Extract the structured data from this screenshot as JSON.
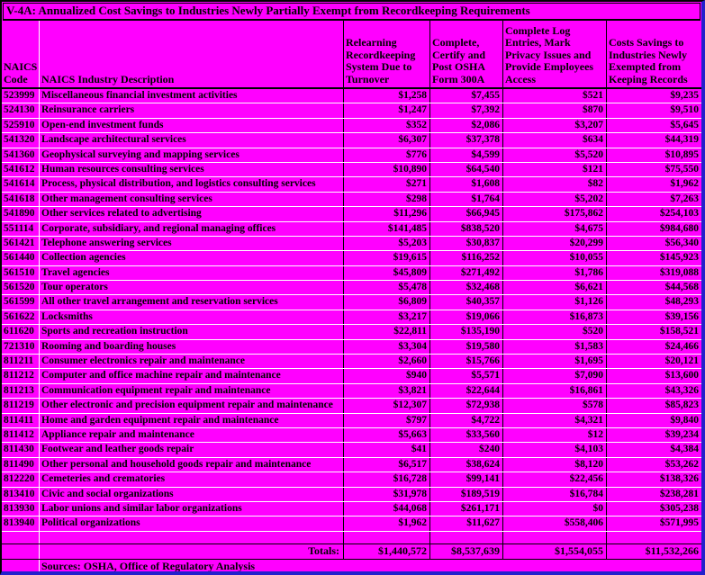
{
  "title": "V-4A: Annualized Cost Savings to Industries Newly Partially Exempt from Recordkeeping Requirements",
  "columns": [
    "NAICS Code",
    "NAICS Industry Description",
    "Relearning Recordkeeping System Due to Turnover",
    "Complete, Certify and Post OSHA Form 300A",
    "Complete Log Entries, Mark Privacy Issues and Provide Employees Access",
    "Costs Savings to Industries Newly Exempted from Keeping Records"
  ],
  "colors": {
    "background": "#FF00FF",
    "text": "#000000",
    "row_separator": "#FFFFFF",
    "frame_blue": "#2222CC"
  },
  "chart_data": {
    "type": "table",
    "title": "V-4A: Annualized Cost Savings to Industries Newly Partially Exempt from Recordkeeping Requirements",
    "rows": [
      {
        "code": "523999",
        "description": "Miscellaneous financial investment activities",
        "relearning": "$1,258",
        "certify": "$7,455",
        "log_entries": "$521",
        "total": "$9,235"
      },
      {
        "code": "524130",
        "description": "Reinsurance carriers",
        "relearning": "$1,247",
        "certify": "$7,392",
        "log_entries": "$870",
        "total": "$9,510"
      },
      {
        "code": "525910",
        "description": "Open-end investment funds",
        "relearning": "$352",
        "certify": "$2,086",
        "log_entries": "$3,207",
        "total": "$5,645"
      },
      {
        "code": "541320",
        "description": "Landscape architectural services",
        "relearning": "$6,307",
        "certify": "$37,378",
        "log_entries": "$634",
        "total": "$44,319"
      },
      {
        "code": "541360",
        "description": "Geophysical surveying and mapping services",
        "relearning": "$776",
        "certify": "$4,599",
        "log_entries": "$5,520",
        "total": "$10,895"
      },
      {
        "code": "541612",
        "description": "Human resources consulting services",
        "relearning": "$10,890",
        "certify": "$64,540",
        "log_entries": "$121",
        "total": "$75,550"
      },
      {
        "code": "541614",
        "description": "Process, physical distribution, and logistics consulting services",
        "relearning": "$271",
        "certify": "$1,608",
        "log_entries": "$82",
        "total": "$1,962"
      },
      {
        "code": "541618",
        "description": "Other management consulting services",
        "relearning": "$298",
        "certify": "$1,764",
        "log_entries": "$5,202",
        "total": "$7,263"
      },
      {
        "code": "541890",
        "description": "Other services related to advertising",
        "relearning": "$11,296",
        "certify": "$66,945",
        "log_entries": "$175,862",
        "total": "$254,103"
      },
      {
        "code": "551114",
        "description": "Corporate, subsidiary, and regional managing offices",
        "relearning": "$141,485",
        "certify": "$838,520",
        "log_entries": "$4,675",
        "total": "$984,680"
      },
      {
        "code": "561421",
        "description": "Telephone answering services",
        "relearning": "$5,203",
        "certify": "$30,837",
        "log_entries": "$20,299",
        "total": "$56,340"
      },
      {
        "code": "561440",
        "description": "Collection agencies",
        "relearning": "$19,615",
        "certify": "$116,252",
        "log_entries": "$10,055",
        "total": "$145,923"
      },
      {
        "code": "561510",
        "description": "Travel agencies",
        "relearning": "$45,809",
        "certify": "$271,492",
        "log_entries": "$1,786",
        "total": "$319,088"
      },
      {
        "code": "561520",
        "description": "Tour operators",
        "relearning": "$5,478",
        "certify": "$32,468",
        "log_entries": "$6,621",
        "total": "$44,568"
      },
      {
        "code": "561599",
        "description": "All other travel arrangement and reservation services",
        "relearning": "$6,809",
        "certify": "$40,357",
        "log_entries": "$1,126",
        "total": "$48,293"
      },
      {
        "code": "561622",
        "description": "Locksmiths",
        "relearning": "$3,217",
        "certify": "$19,066",
        "log_entries": "$16,873",
        "total": "$39,156"
      },
      {
        "code": "611620",
        "description": "Sports and recreation instruction",
        "relearning": "$22,811",
        "certify": "$135,190",
        "log_entries": "$520",
        "total": "$158,521"
      },
      {
        "code": "721310",
        "description": "Rooming and boarding houses",
        "relearning": "$3,304",
        "certify": "$19,580",
        "log_entries": "$1,583",
        "total": "$24,466"
      },
      {
        "code": "811211",
        "description": "Consumer electronics repair and maintenance",
        "relearning": "$2,660",
        "certify": "$15,766",
        "log_entries": "$1,695",
        "total": "$20,121"
      },
      {
        "code": "811212",
        "description": "Computer and office machine repair and maintenance",
        "relearning": "$940",
        "certify": "$5,571",
        "log_entries": "$7,090",
        "total": "$13,600"
      },
      {
        "code": "811213",
        "description": "Communication equipment repair and maintenance",
        "relearning": "$3,821",
        "certify": "$22,644",
        "log_entries": "$16,861",
        "total": "$43,326"
      },
      {
        "code": "811219",
        "description": "Other electronic and precision equipment repair and maintenance",
        "relearning": "$12,307",
        "certify": "$72,938",
        "log_entries": "$578",
        "total": "$85,823"
      },
      {
        "code": "811411",
        "description": "Home and garden equipment repair and maintenance",
        "relearning": "$797",
        "certify": "$4,722",
        "log_entries": "$4,321",
        "total": "$9,840"
      },
      {
        "code": "811412",
        "description": "Appliance repair and maintenance",
        "relearning": "$5,663",
        "certify": "$33,560",
        "log_entries": "$12",
        "total": "$39,234"
      },
      {
        "code": "811430",
        "description": "Footwear and leather goods repair",
        "relearning": "$41",
        "certify": "$240",
        "log_entries": "$4,103",
        "total": "$4,384"
      },
      {
        "code": "811490",
        "description": "Other personal and household goods repair and maintenance",
        "relearning": "$6,517",
        "certify": "$38,624",
        "log_entries": "$8,120",
        "total": "$53,262"
      },
      {
        "code": "812220",
        "description": "Cemeteries and crematories",
        "relearning": "$16,728",
        "certify": "$99,141",
        "log_entries": "$22,456",
        "total": "$138,326"
      },
      {
        "code": "813410",
        "description": "Civic and social organizations",
        "relearning": "$31,978",
        "certify": "$189,519",
        "log_entries": "$16,784",
        "total": "$238,281"
      },
      {
        "code": "813930",
        "description": "Labor unions and similar labor organizations",
        "relearning": "$44,068",
        "certify": "$261,171",
        "log_entries": "$0",
        "total": "$305,238"
      },
      {
        "code": "813940",
        "description": "Political organizations",
        "relearning": "$1,962",
        "certify": "$11,627",
        "log_entries": "$558,406",
        "total": "$571,995"
      }
    ],
    "totals": {
      "label": "Totals:",
      "relearning": "$1,440,572",
      "certify": "$8,537,639",
      "log_entries": "$1,554,055",
      "total": "$11,532,266"
    }
  },
  "source_note": "Sources:  OSHA, Office of Regulatory Analysis"
}
